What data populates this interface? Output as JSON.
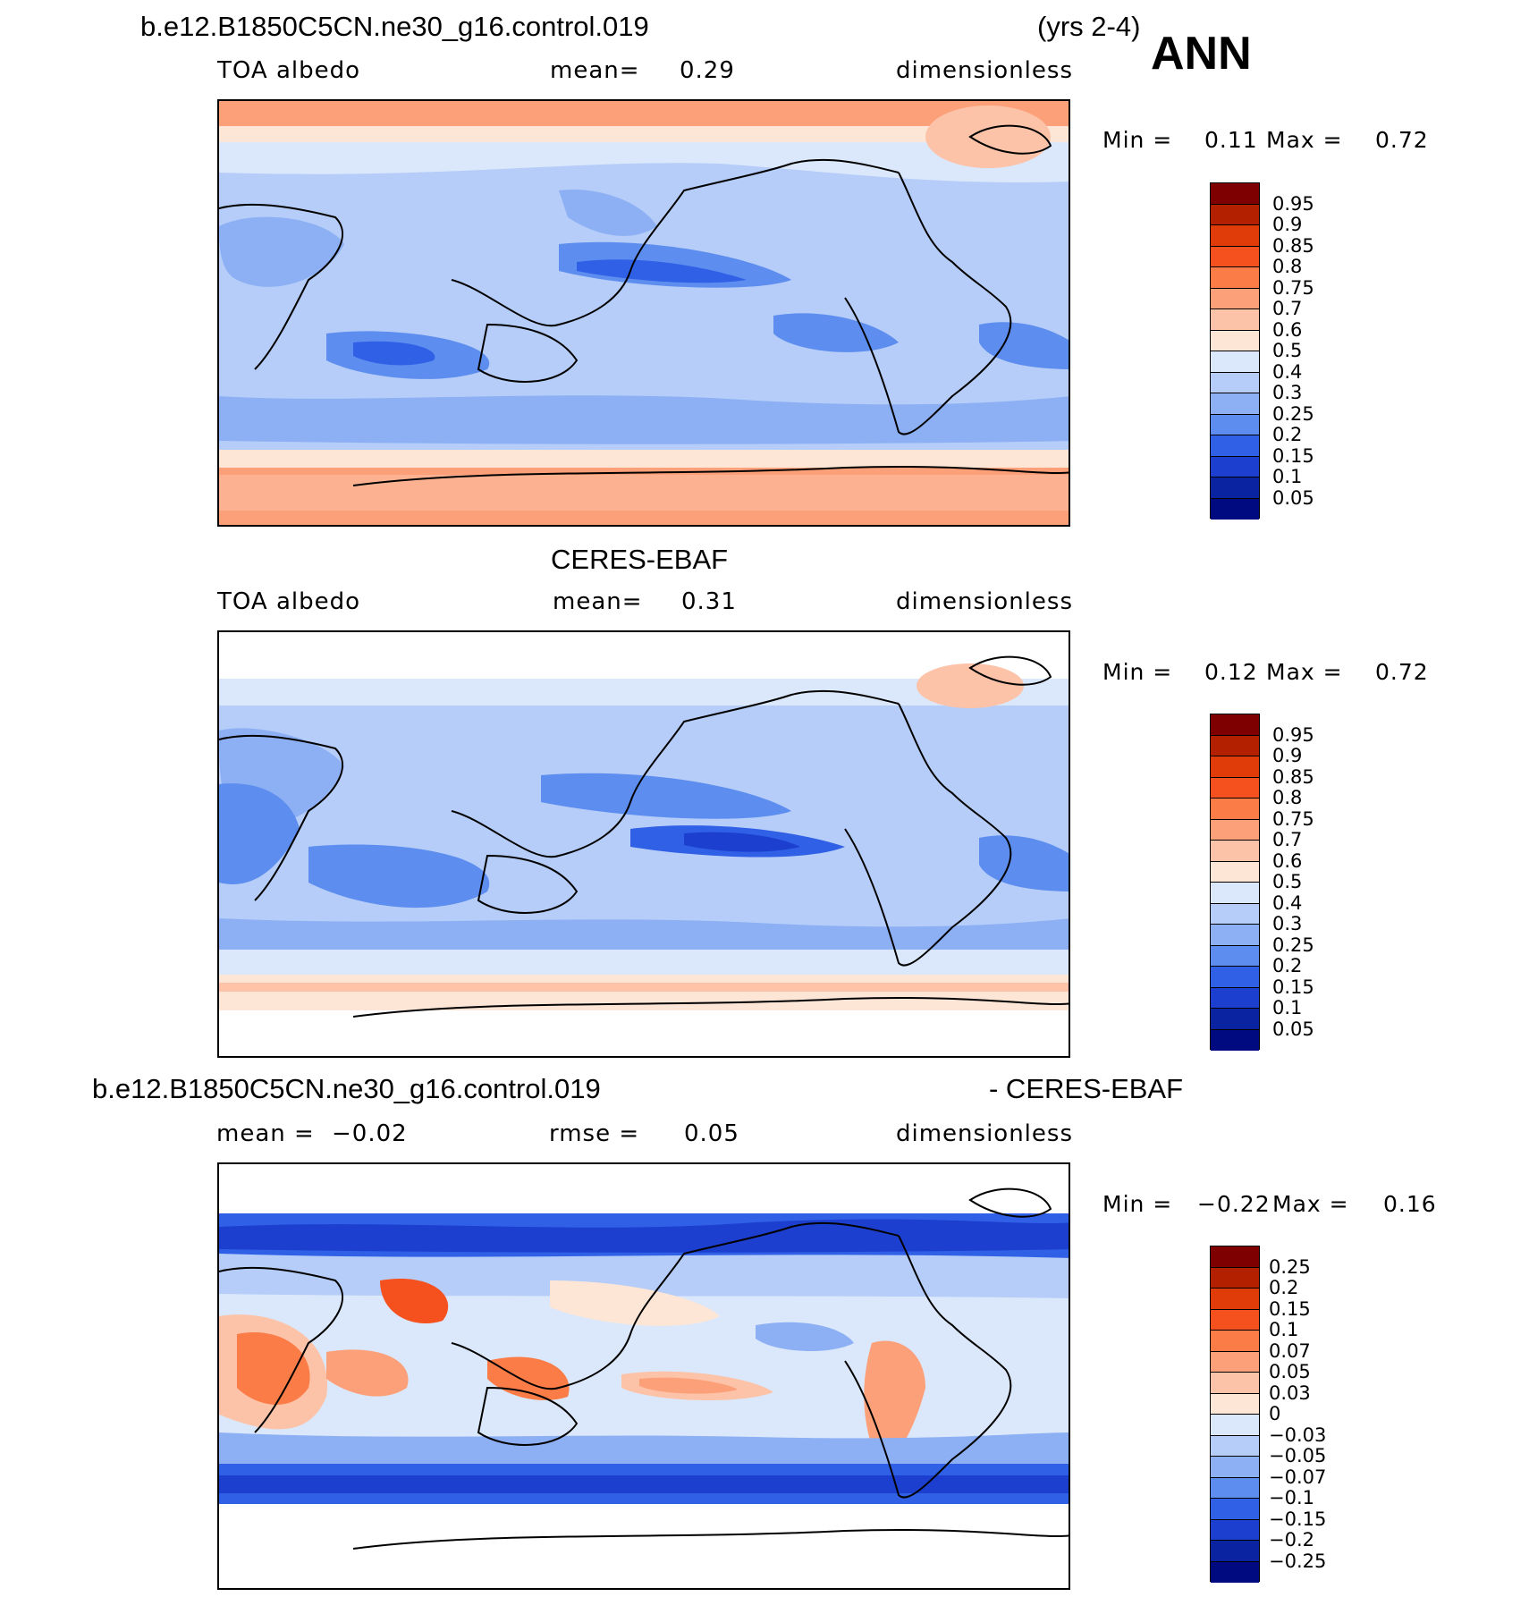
{
  "header": {
    "case": "b.e12.B1850C5CN.ne30_g16.control.019",
    "years": "(yrs 2-4)",
    "season": "ANN"
  },
  "panels": [
    {
      "title": "",
      "left": "TOA albedo",
      "center_label": "mean=",
      "center_value": "0.29",
      "right": "dimensionless",
      "min_label": "Min =",
      "min_value": "0.11",
      "max_label": "Max =",
      "max_value": "0.72",
      "colorbar": [
        "0.95",
        "0.9",
        "0.85",
        "0.8",
        "0.75",
        "0.7",
        "0.6",
        "0.5",
        "0.4",
        "0.3",
        "0.25",
        "0.2",
        "0.15",
        "0.1",
        "0.05"
      ]
    },
    {
      "title": "CERES-EBAF",
      "left": "TOA albedo",
      "center_label": "mean=",
      "center_value": "0.31",
      "right": "dimensionless",
      "min_label": "Min =",
      "min_value": "0.12",
      "max_label": "Max =",
      "max_value": "0.72",
      "colorbar": [
        "0.95",
        "0.9",
        "0.85",
        "0.8",
        "0.75",
        "0.7",
        "0.6",
        "0.5",
        "0.4",
        "0.3",
        "0.25",
        "0.2",
        "0.15",
        "0.1",
        "0.05"
      ]
    },
    {
      "title_left": "b.e12.B1850C5CN.ne30_g16.control.019",
      "title_right": "- CERES-EBAF",
      "left_label": "mean =",
      "left_value": "−0.02",
      "center_label": "rmse =",
      "center_value": "0.05",
      "right": "dimensionless",
      "min_label": "Min =",
      "min_value": "−0.22",
      "max_label": "Max =",
      "max_value": "0.16",
      "colorbar": [
        "0.25",
        "0.2",
        "0.15",
        "0.1",
        "0.07",
        "0.05",
        "0.03",
        "0",
        "−0.03",
        "−0.05",
        "−0.07",
        "−0.1",
        "−0.15",
        "−0.2",
        "−0.25"
      ]
    }
  ],
  "colors": {
    "palette": [
      "#7e0000",
      "#b32000",
      "#e03c0a",
      "#f4511e",
      "#fb7c46",
      "#fca07a",
      "#fcc3a8",
      "#fde6d6",
      "#dbe8fb",
      "#b5cdf8",
      "#8db0f4",
      "#5d8def",
      "#3060e6",
      "#1c3fd0",
      "#0a23a0",
      "#000a80"
    ]
  }
}
